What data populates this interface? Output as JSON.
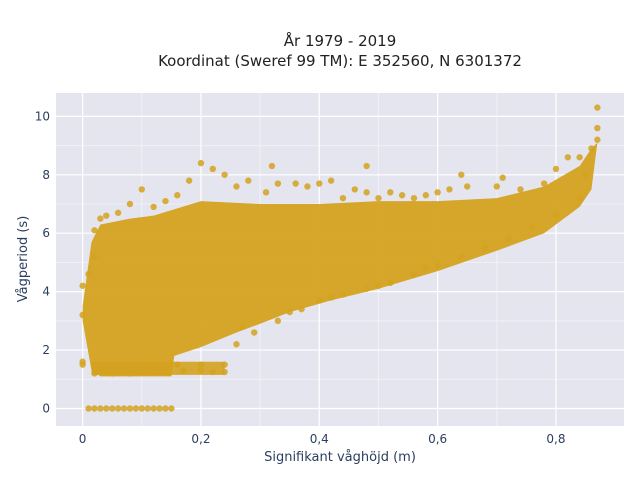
{
  "chart_data": {
    "type": "scatter",
    "title_line1": "År 1979 - 2019",
    "title_line2": "Koordinat (Sweref 99 TM): E 352560, N 6301372",
    "xlabel": "Signifikant våghöjd (m)",
    "ylabel": "Vågperiod (s)",
    "xlim": [
      -0.045,
      0.915
    ],
    "ylim": [
      -0.6,
      10.8
    ],
    "x_ticks": [
      0,
      0.2,
      0.4,
      0.6,
      0.8
    ],
    "x_tick_labels": [
      "0",
      "0,2",
      "0,4",
      "0,6",
      "0,8"
    ],
    "y_ticks": [
      0,
      2,
      4,
      6,
      8,
      10
    ],
    "y_tick_labels": [
      "0",
      "2",
      "4",
      "6",
      "8",
      "10"
    ],
    "grid": true,
    "legend": "none",
    "series": [
      {
        "color": "#D4A21F",
        "points": [
          [
            0.01,
            0.0
          ],
          [
            0.02,
            0.0
          ],
          [
            0.03,
            0.0
          ],
          [
            0.04,
            0.0
          ],
          [
            0.05,
            0.0
          ],
          [
            0.06,
            0.0
          ],
          [
            0.07,
            0.0
          ],
          [
            0.08,
            0.0
          ],
          [
            0.09,
            0.0
          ],
          [
            0.1,
            0.0
          ],
          [
            0.11,
            0.0
          ],
          [
            0.12,
            0.0
          ],
          [
            0.13,
            0.0
          ],
          [
            0.14,
            0.0
          ],
          [
            0.15,
            0.0
          ],
          [
            0.0,
            1.6
          ],
          [
            0.0,
            1.5
          ],
          [
            0.0,
            3.2
          ],
          [
            0.0,
            4.2
          ],
          [
            0.01,
            4.6
          ],
          [
            0.02,
            5.2
          ],
          [
            0.02,
            6.1
          ],
          [
            0.03,
            6.5
          ],
          [
            0.04,
            6.6
          ],
          [
            0.06,
            6.7
          ],
          [
            0.08,
            7.0
          ],
          [
            0.1,
            7.5
          ],
          [
            0.12,
            6.9
          ],
          [
            0.14,
            7.1
          ],
          [
            0.16,
            7.3
          ],
          [
            0.18,
            7.8
          ],
          [
            0.2,
            8.4
          ],
          [
            0.22,
            8.2
          ],
          [
            0.24,
            8.0
          ],
          [
            0.26,
            7.6
          ],
          [
            0.28,
            7.8
          ],
          [
            0.31,
            7.4
          ],
          [
            0.33,
            7.7
          ],
          [
            0.36,
            7.7
          ],
          [
            0.38,
            7.6
          ],
          [
            0.4,
            7.7
          ],
          [
            0.42,
            7.8
          ],
          [
            0.44,
            7.2
          ],
          [
            0.46,
            7.5
          ],
          [
            0.48,
            7.4
          ],
          [
            0.5,
            7.2
          ],
          [
            0.52,
            7.4
          ],
          [
            0.54,
            7.3
          ],
          [
            0.56,
            7.2
          ],
          [
            0.58,
            7.3
          ],
          [
            0.6,
            7.4
          ],
          [
            0.62,
            7.5
          ],
          [
            0.65,
            7.6
          ],
          [
            0.7,
            7.6
          ],
          [
            0.74,
            7.5
          ],
          [
            0.78,
            7.7
          ],
          [
            0.8,
            8.2
          ],
          [
            0.82,
            8.6
          ],
          [
            0.84,
            8.6
          ],
          [
            0.86,
            8.9
          ],
          [
            0.87,
            9.2
          ],
          [
            0.87,
            9.6
          ],
          [
            0.87,
            10.3
          ],
          [
            0.32,
            8.3
          ],
          [
            0.48,
            8.3
          ],
          [
            0.64,
            8.0
          ],
          [
            0.71,
            7.9
          ],
          [
            0.02,
            1.2
          ],
          [
            0.05,
            1.2
          ],
          [
            0.08,
            1.2
          ],
          [
            0.11,
            1.25
          ],
          [
            0.14,
            1.3
          ],
          [
            0.17,
            1.3
          ],
          [
            0.2,
            1.3
          ],
          [
            0.22,
            1.25
          ],
          [
            0.24,
            1.25
          ],
          [
            0.24,
            1.5
          ],
          [
            0.2,
            1.5
          ],
          [
            0.16,
            1.5
          ],
          [
            0.12,
            1.5
          ],
          [
            0.26,
            2.2
          ],
          [
            0.29,
            2.6
          ],
          [
            0.33,
            3.0
          ],
          [
            0.37,
            3.4
          ],
          [
            0.4,
            3.7
          ],
          [
            0.44,
            3.9
          ],
          [
            0.48,
            4.1
          ],
          [
            0.52,
            4.3
          ],
          [
            0.56,
            4.6
          ],
          [
            0.6,
            4.9
          ],
          [
            0.64,
            5.2
          ],
          [
            0.68,
            5.5
          ],
          [
            0.72,
            5.8
          ],
          [
            0.76,
            6.2
          ],
          [
            0.8,
            6.6
          ],
          [
            0.84,
            7.2
          ],
          [
            0.85,
            8.0
          ],
          [
            0.27,
            2.8
          ],
          [
            0.35,
            3.3
          ],
          [
            0.42,
            3.8
          ],
          [
            0.5,
            4.2
          ],
          [
            0.58,
            4.8
          ]
        ]
      }
    ]
  }
}
